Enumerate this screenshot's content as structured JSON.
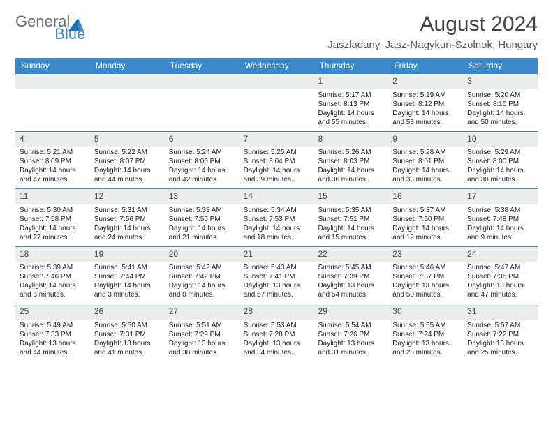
{
  "logo": {
    "text1": "General",
    "text2": "Blue"
  },
  "header": {
    "title": "August 2024",
    "location": "Jaszladany, Jasz-Nagykun-Szolnok, Hungary"
  },
  "colors": {
    "header_bg": "#3a87c9",
    "daynum_bg": "#eceded",
    "week_border": "#3a87c9",
    "logo_gray": "#6a6a6a",
    "logo_blue": "#3a87c9"
  },
  "weekdays": [
    "Sunday",
    "Monday",
    "Tuesday",
    "Wednesday",
    "Thursday",
    "Friday",
    "Saturday"
  ],
  "weeks": [
    [
      {
        "num": "",
        "sunrise": "",
        "sunset": "",
        "day1": "",
        "day2": ""
      },
      {
        "num": "",
        "sunrise": "",
        "sunset": "",
        "day1": "",
        "day2": ""
      },
      {
        "num": "",
        "sunrise": "",
        "sunset": "",
        "day1": "",
        "day2": ""
      },
      {
        "num": "",
        "sunrise": "",
        "sunset": "",
        "day1": "",
        "day2": ""
      },
      {
        "num": "1",
        "sunrise": "Sunrise: 5:17 AM",
        "sunset": "Sunset: 8:13 PM",
        "day1": "Daylight: 14 hours",
        "day2": "and 55 minutes."
      },
      {
        "num": "2",
        "sunrise": "Sunrise: 5:19 AM",
        "sunset": "Sunset: 8:12 PM",
        "day1": "Daylight: 14 hours",
        "day2": "and 53 minutes."
      },
      {
        "num": "3",
        "sunrise": "Sunrise: 5:20 AM",
        "sunset": "Sunset: 8:10 PM",
        "day1": "Daylight: 14 hours",
        "day2": "and 50 minutes."
      }
    ],
    [
      {
        "num": "4",
        "sunrise": "Sunrise: 5:21 AM",
        "sunset": "Sunset: 8:09 PM",
        "day1": "Daylight: 14 hours",
        "day2": "and 47 minutes."
      },
      {
        "num": "5",
        "sunrise": "Sunrise: 5:22 AM",
        "sunset": "Sunset: 8:07 PM",
        "day1": "Daylight: 14 hours",
        "day2": "and 44 minutes."
      },
      {
        "num": "6",
        "sunrise": "Sunrise: 5:24 AM",
        "sunset": "Sunset: 8:06 PM",
        "day1": "Daylight: 14 hours",
        "day2": "and 42 minutes."
      },
      {
        "num": "7",
        "sunrise": "Sunrise: 5:25 AM",
        "sunset": "Sunset: 8:04 PM",
        "day1": "Daylight: 14 hours",
        "day2": "and 39 minutes."
      },
      {
        "num": "8",
        "sunrise": "Sunrise: 5:26 AM",
        "sunset": "Sunset: 8:03 PM",
        "day1": "Daylight: 14 hours",
        "day2": "and 36 minutes."
      },
      {
        "num": "9",
        "sunrise": "Sunrise: 5:28 AM",
        "sunset": "Sunset: 8:01 PM",
        "day1": "Daylight: 14 hours",
        "day2": "and 33 minutes."
      },
      {
        "num": "10",
        "sunrise": "Sunrise: 5:29 AM",
        "sunset": "Sunset: 8:00 PM",
        "day1": "Daylight: 14 hours",
        "day2": "and 30 minutes."
      }
    ],
    [
      {
        "num": "11",
        "sunrise": "Sunrise: 5:30 AM",
        "sunset": "Sunset: 7:58 PM",
        "day1": "Daylight: 14 hours",
        "day2": "and 27 minutes."
      },
      {
        "num": "12",
        "sunrise": "Sunrise: 5:31 AM",
        "sunset": "Sunset: 7:56 PM",
        "day1": "Daylight: 14 hours",
        "day2": "and 24 minutes."
      },
      {
        "num": "13",
        "sunrise": "Sunrise: 5:33 AM",
        "sunset": "Sunset: 7:55 PM",
        "day1": "Daylight: 14 hours",
        "day2": "and 21 minutes."
      },
      {
        "num": "14",
        "sunrise": "Sunrise: 5:34 AM",
        "sunset": "Sunset: 7:53 PM",
        "day1": "Daylight: 14 hours",
        "day2": "and 18 minutes."
      },
      {
        "num": "15",
        "sunrise": "Sunrise: 5:35 AM",
        "sunset": "Sunset: 7:51 PM",
        "day1": "Daylight: 14 hours",
        "day2": "and 15 minutes."
      },
      {
        "num": "16",
        "sunrise": "Sunrise: 5:37 AM",
        "sunset": "Sunset: 7:50 PM",
        "day1": "Daylight: 14 hours",
        "day2": "and 12 minutes."
      },
      {
        "num": "17",
        "sunrise": "Sunrise: 5:38 AM",
        "sunset": "Sunset: 7:48 PM",
        "day1": "Daylight: 14 hours",
        "day2": "and 9 minutes."
      }
    ],
    [
      {
        "num": "18",
        "sunrise": "Sunrise: 5:39 AM",
        "sunset": "Sunset: 7:46 PM",
        "day1": "Daylight: 14 hours",
        "day2": "and 6 minutes."
      },
      {
        "num": "19",
        "sunrise": "Sunrise: 5:41 AM",
        "sunset": "Sunset: 7:44 PM",
        "day1": "Daylight: 14 hours",
        "day2": "and 3 minutes."
      },
      {
        "num": "20",
        "sunrise": "Sunrise: 5:42 AM",
        "sunset": "Sunset: 7:42 PM",
        "day1": "Daylight: 14 hours",
        "day2": "and 0 minutes."
      },
      {
        "num": "21",
        "sunrise": "Sunrise: 5:43 AM",
        "sunset": "Sunset: 7:41 PM",
        "day1": "Daylight: 13 hours",
        "day2": "and 57 minutes."
      },
      {
        "num": "22",
        "sunrise": "Sunrise: 5:45 AM",
        "sunset": "Sunset: 7:39 PM",
        "day1": "Daylight: 13 hours",
        "day2": "and 54 minutes."
      },
      {
        "num": "23",
        "sunrise": "Sunrise: 5:46 AM",
        "sunset": "Sunset: 7:37 PM",
        "day1": "Daylight: 13 hours",
        "day2": "and 50 minutes."
      },
      {
        "num": "24",
        "sunrise": "Sunrise: 5:47 AM",
        "sunset": "Sunset: 7:35 PM",
        "day1": "Daylight: 13 hours",
        "day2": "and 47 minutes."
      }
    ],
    [
      {
        "num": "25",
        "sunrise": "Sunrise: 5:49 AM",
        "sunset": "Sunset: 7:33 PM",
        "day1": "Daylight: 13 hours",
        "day2": "and 44 minutes."
      },
      {
        "num": "26",
        "sunrise": "Sunrise: 5:50 AM",
        "sunset": "Sunset: 7:31 PM",
        "day1": "Daylight: 13 hours",
        "day2": "and 41 minutes."
      },
      {
        "num": "27",
        "sunrise": "Sunrise: 5:51 AM",
        "sunset": "Sunset: 7:29 PM",
        "day1": "Daylight: 13 hours",
        "day2": "and 38 minutes."
      },
      {
        "num": "28",
        "sunrise": "Sunrise: 5:53 AM",
        "sunset": "Sunset: 7:28 PM",
        "day1": "Daylight: 13 hours",
        "day2": "and 34 minutes."
      },
      {
        "num": "29",
        "sunrise": "Sunrise: 5:54 AM",
        "sunset": "Sunset: 7:26 PM",
        "day1": "Daylight: 13 hours",
        "day2": "and 31 minutes."
      },
      {
        "num": "30",
        "sunrise": "Sunrise: 5:55 AM",
        "sunset": "Sunset: 7:24 PM",
        "day1": "Daylight: 13 hours",
        "day2": "and 28 minutes."
      },
      {
        "num": "31",
        "sunrise": "Sunrise: 5:57 AM",
        "sunset": "Sunset: 7:22 PM",
        "day1": "Daylight: 13 hours",
        "day2": "and 25 minutes."
      }
    ]
  ]
}
